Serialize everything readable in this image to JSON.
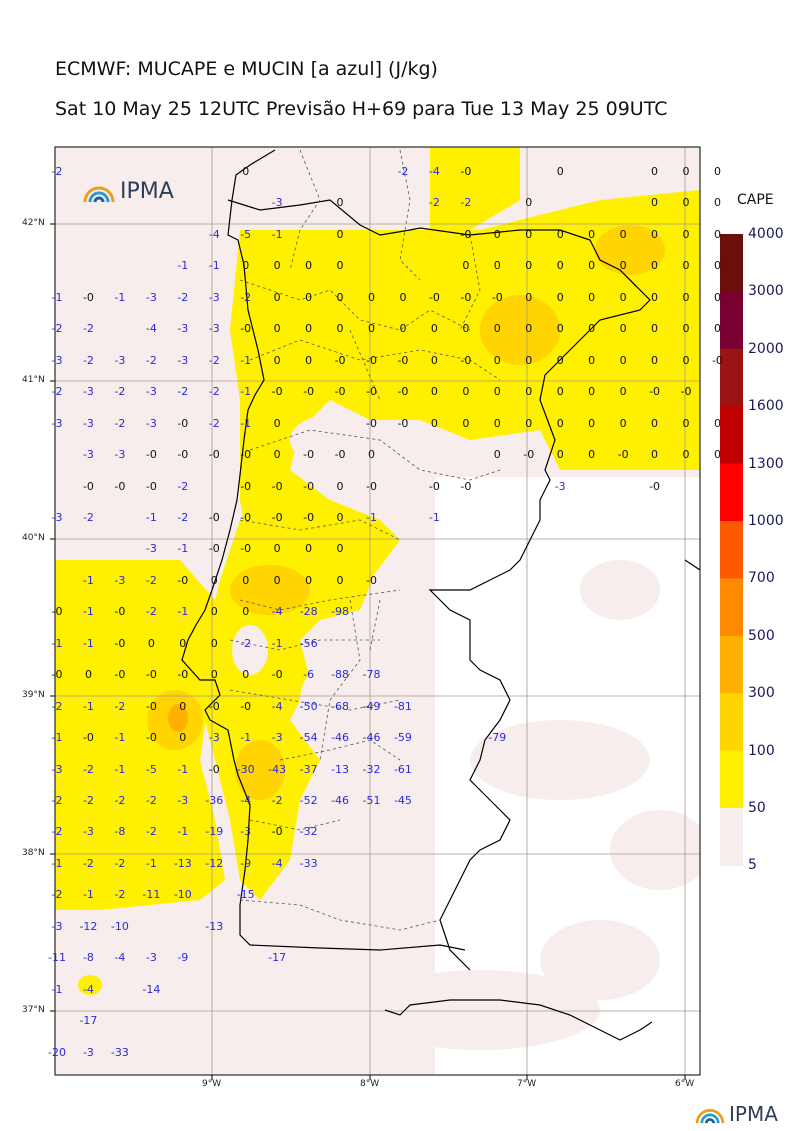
{
  "header": {
    "title": "ECMWF: MUCAPE e MUCIN [a azul] (J/kg)",
    "subtitle": "Sat 10 May 25 12UTC Previsão H+69 para Tue 13 May 25 09UTC"
  },
  "logo": {
    "text": "IPMA"
  },
  "footer_logo": {
    "text": "IPMA"
  },
  "axes": {
    "lat_labels": [
      "42°N",
      "41°N",
      "40°N",
      "39°N",
      "38°N",
      "37°N"
    ],
    "lon_labels": [
      "9°W",
      "8°W",
      "7°W",
      "6°W"
    ]
  },
  "colorbar": {
    "title": "CAPE",
    "levels": [
      "4000",
      "3000",
      "2000",
      "1600",
      "1300",
      "1000",
      "700",
      "500",
      "300",
      "100",
      "50",
      "5"
    ],
    "colors": [
      "#6b0e0c",
      "#7a0032",
      "#9b1414",
      "#c00000",
      "#ff0000",
      "#ff5a00",
      "#ff8a00",
      "#ffb000",
      "#ffd400",
      "#fff000",
      "#f7eded"
    ]
  },
  "grid_values": [
    [
      "-2",
      "",
      "",
      "",
      "",
      "",
      "0",
      "",
      "",
      "",
      "",
      "-2",
      "-4",
      "-0",
      "",
      "",
      "0",
      "",
      "",
      "0",
      "0",
      "0"
    ],
    [
      "",
      "",
      "",
      "",
      "",
      "",
      "",
      "-3",
      "",
      "0",
      "",
      "",
      "-2",
      "-2",
      "",
      "0",
      "",
      "",
      "",
      "0",
      "0",
      "0"
    ],
    [
      "",
      "",
      "",
      "",
      "",
      "-4",
      "-5",
      "-1",
      "",
      "0",
      "",
      "",
      "",
      "-0",
      "0",
      "0",
      "0",
      "0",
      "0",
      "0",
      "0",
      "0"
    ],
    [
      "",
      "",
      "",
      "",
      "-1",
      "-1",
      "0",
      "0",
      "0",
      "0",
      "",
      "",
      "",
      "0",
      "0",
      "0",
      "0",
      "0",
      "0",
      "0",
      "0",
      "0"
    ],
    [
      "-1",
      "-0",
      "-1",
      "-3",
      "-2",
      "-3",
      "-2",
      "0",
      "0",
      "0",
      "0",
      "0",
      "-0",
      "-0",
      "-0",
      "0",
      "0",
      "0",
      "0",
      "0",
      "0",
      "0"
    ],
    [
      "-2",
      "-2",
      "",
      "-4",
      "-3",
      "-3",
      "-0",
      "0",
      "0",
      "0",
      "0",
      "0",
      "0",
      "0",
      "0",
      "0",
      "0",
      "0",
      "0",
      "0",
      "0",
      "0"
    ],
    [
      "-3",
      "-2",
      "-3",
      "-2",
      "-3",
      "-2",
      "-1",
      "0",
      "0",
      "-0",
      "-0",
      "-0",
      "0",
      "-0",
      "0",
      "0",
      "0",
      "0",
      "0",
      "0",
      "0",
      "-0"
    ],
    [
      "-2",
      "-3",
      "-2",
      "-3",
      "-2",
      "-2",
      "-1",
      "-0",
      "-0",
      "-0",
      "-0",
      "-0",
      "0",
      "0",
      "0",
      "0",
      "0",
      "0",
      "0",
      "-0",
      "-0",
      ""
    ],
    [
      "-3",
      "-3",
      "-2",
      "-3",
      "-0",
      "-2",
      "-1",
      "0",
      "",
      "",
      "-0",
      "-0",
      "0",
      "0",
      "0",
      "0",
      "0",
      "0",
      "0",
      "0",
      "0",
      "0"
    ],
    [
      "",
      "-3",
      "-3",
      "-0",
      "-0",
      "-0",
      "-0",
      "0",
      "-0",
      "-0",
      "0",
      "",
      "",
      "",
      "0",
      "-0",
      "0",
      "0",
      "-0",
      "0",
      "0",
      "0"
    ],
    [
      "",
      "-0",
      "-0",
      "-0",
      "-2",
      "",
      "-0",
      "-0",
      "-0",
      "0",
      "-0",
      "",
      "-0",
      "-0",
      "",
      "",
      "-3",
      "",
      "",
      "-0",
      "",
      ""
    ],
    [
      "-3",
      "-2",
      "",
      "-1",
      "-2",
      "-0",
      "-0",
      "-0",
      "-0",
      "0",
      "-1",
      "",
      "-1",
      "",
      "",
      "",
      "",
      "",
      "",
      "",
      "",
      ""
    ],
    [
      "",
      "",
      "",
      "-3",
      "-1",
      "-0",
      "-0",
      "0",
      "0",
      "0",
      "",
      "",
      "",
      "",
      "",
      "",
      "",
      "",
      "",
      "",
      "",
      ""
    ],
    [
      "",
      "-1",
      "-3",
      "-2",
      "-0",
      "0",
      "0",
      "0",
      "0",
      "0",
      "-0",
      "",
      "",
      "",
      "",
      "",
      "",
      "",
      "",
      "",
      "",
      ""
    ],
    [
      "-0",
      "-1",
      "-0",
      "-2",
      "-1",
      "0",
      "0",
      "-4",
      "-28",
      "-98",
      "",
      "",
      "",
      "",
      "",
      "",
      "",
      "",
      "",
      "",
      "",
      ""
    ],
    [
      "-1",
      "-1",
      "-0",
      "0",
      "0",
      "0",
      "-2",
      "-1",
      "-56",
      "",
      "",
      "",
      "",
      "",
      "",
      "",
      "",
      "",
      "",
      "",
      "",
      ""
    ],
    [
      "-0",
      "0",
      "-0",
      "-0",
      "-0",
      "0",
      "0",
      "-0",
      "-6",
      "-88",
      "-78",
      "",
      "",
      "",
      "",
      "",
      "",
      "",
      "",
      "",
      "",
      ""
    ],
    [
      "-2",
      "-1",
      "-2",
      "-0",
      "0",
      "-0",
      "-0",
      "-4",
      "-50",
      "-68",
      "-49",
      "-81",
      "",
      "",
      "",
      "",
      "",
      "",
      "",
      "",
      "",
      ""
    ],
    [
      "-1",
      "-0",
      "-1",
      "-0",
      "0",
      "-3",
      "-1",
      "-3",
      "-54",
      "-46",
      "-46",
      "-59",
      "",
      "",
      "-79",
      "",
      "",
      "",
      "",
      "",
      "",
      ""
    ],
    [
      "-3",
      "-2",
      "-1",
      "-5",
      "-1",
      "-0",
      "-30",
      "-43",
      "-37",
      "-13",
      "-32",
      "-61",
      "",
      "",
      "",
      "",
      "",
      "",
      "",
      "",
      "",
      ""
    ],
    [
      "-2",
      "-2",
      "-2",
      "-2",
      "-3",
      "-36",
      "-4",
      "-2",
      "-52",
      "-46",
      "-51",
      "-45",
      "",
      "",
      "",
      "",
      "",
      "",
      "",
      "",
      "",
      ""
    ],
    [
      "-2",
      "-3",
      "-8",
      "-2",
      "-1",
      "-19",
      "-3",
      "-0",
      "-32",
      "",
      "",
      "",
      "",
      "",
      "",
      "",
      "",
      "",
      "",
      "",
      "",
      ""
    ],
    [
      "-1",
      "-2",
      "-2",
      "-1",
      "-13",
      "-12",
      "-9",
      "-4",
      "-33",
      "",
      "",
      "",
      "",
      "",
      "",
      "",
      "",
      "",
      "",
      "",
      "",
      ""
    ],
    [
      "-2",
      "-1",
      "-2",
      "-11",
      "-10",
      "",
      "-15",
      "",
      "",
      "",
      "",
      "",
      "",
      "",
      "",
      "",
      "",
      "",
      "",
      "",
      "",
      ""
    ],
    [
      "-3",
      "-12",
      "-10",
      "",
      "",
      "-13",
      "",
      "",
      "",
      "",
      "",
      "",
      "",
      "",
      "",
      "",
      "",
      "",
      "",
      "",
      "",
      ""
    ],
    [
      "-11",
      "-8",
      "-4",
      "-3",
      "-9",
      "",
      "",
      "-17",
      "",
      "",
      "",
      "",
      "",
      "",
      "",
      "",
      "",
      "",
      "",
      "",
      "",
      ""
    ],
    [
      "-1",
      "-4",
      "",
      "-14",
      "",
      "",
      "",
      "",
      "",
      "",
      "",
      "",
      "",
      "",
      "",
      "",
      "",
      "",
      "",
      "",
      "",
      ""
    ],
    [
      "",
      "-17",
      "",
      "",
      "",
      "",
      "",
      "",
      "",
      "",
      "",
      "",
      "",
      "",
      "",
      "",
      "",
      "",
      "",
      "",
      "",
      ""
    ],
    [
      "-20",
      "-3",
      "-33",
      "",
      "",
      "",
      "",
      "",
      "",
      "",
      "",
      "",
      "",
      "",
      "",
      "",
      "",
      "",
      "",
      "",
      "",
      ""
    ]
  ]
}
